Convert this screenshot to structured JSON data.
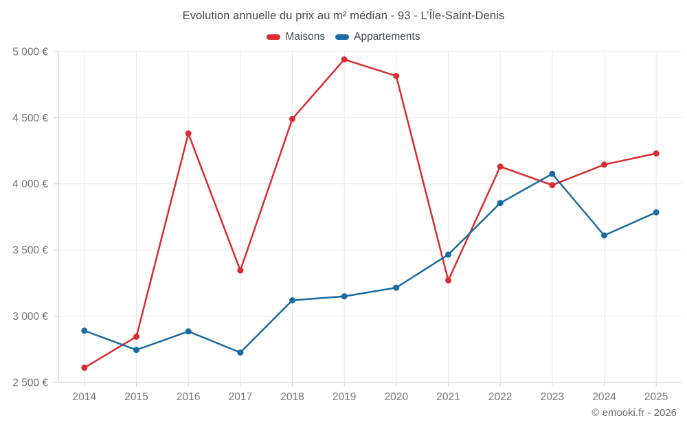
{
  "title": "Evolution annuelle du prix au m² médian - 93 - L’Île-Saint-Denis",
  "footer": {
    "copyright": "© emooki.fr - 2026"
  },
  "colors": {
    "maisons": "#da2b30",
    "appartements": "#1a6aa3",
    "grid": "#e9e9e9",
    "axis": "#cfcfcf",
    "tick_text": "#757575"
  },
  "chart_data": {
    "type": "line",
    "x": [
      2014,
      2015,
      2016,
      2017,
      2018,
      2019,
      2020,
      2021,
      2022,
      2023,
      2024,
      2025
    ],
    "series": [
      {
        "name": "Maisons",
        "color": "#da2b30",
        "values": [
          2610,
          2845,
          4380,
          3345,
          4490,
          4940,
          4815,
          3270,
          4130,
          3990,
          4145,
          4230
        ]
      },
      {
        "name": "Appartements",
        "color": "#1a6aa3",
        "values": [
          2890,
          2745,
          2885,
          2725,
          3120,
          3150,
          3215,
          3465,
          3855,
          4075,
          3610,
          3785
        ]
      }
    ],
    "ylim": [
      2500,
      5000
    ],
    "yticks": [
      {
        "value": 2500,
        "label": "2 500 €"
      },
      {
        "value": 3000,
        "label": "3 000 €"
      },
      {
        "value": 3500,
        "label": "3 500 €"
      },
      {
        "value": 4000,
        "label": "4 000 €"
      },
      {
        "value": 4500,
        "label": "4 500 €"
      },
      {
        "value": 5000,
        "label": "5 000 €"
      }
    ],
    "grid": true,
    "legend_position": "top",
    "xlabel": "",
    "ylabel": ""
  }
}
